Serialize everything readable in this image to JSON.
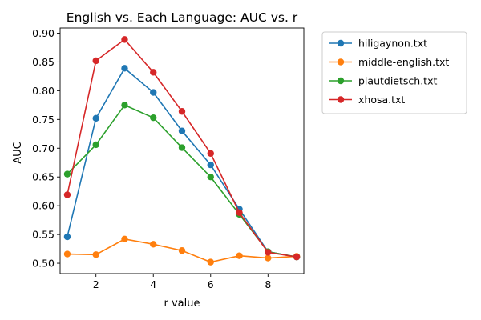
{
  "chart_data": {
    "type": "line",
    "title": "English vs. Each Language: AUC vs. r",
    "xlabel": "r value",
    "ylabel": "AUC",
    "x": [
      1,
      2,
      3,
      4,
      5,
      6,
      7,
      8,
      9
    ],
    "xlim": [
      0.75,
      9.25
    ],
    "ylim": [
      0.482,
      0.909
    ],
    "xticks": [
      2,
      4,
      6,
      8
    ],
    "yticks": [
      0.5,
      0.55,
      0.6,
      0.65,
      0.7,
      0.75,
      0.8,
      0.85,
      0.9
    ],
    "ytick_labels": [
      "0.50",
      "0.55",
      "0.60",
      "0.65",
      "0.70",
      "0.75",
      "0.80",
      "0.85",
      "0.90"
    ],
    "grid": false,
    "legend_position": "outside-upper-right",
    "series": [
      {
        "name": "hiligaynon.txt",
        "color": "#1f77b4",
        "values": [
          0.546,
          0.752,
          0.839,
          0.797,
          0.73,
          0.671,
          0.594,
          0.52,
          0.511
        ]
      },
      {
        "name": "middle-english.txt",
        "color": "#ff7f0e",
        "values": [
          0.516,
          0.515,
          0.542,
          0.533,
          0.522,
          0.502,
          0.513,
          0.509,
          0.512
        ]
      },
      {
        "name": "plautdietsch.txt",
        "color": "#2ca02c",
        "values": [
          0.655,
          0.706,
          0.775,
          0.753,
          0.701,
          0.65,
          0.585,
          0.52,
          0.511
        ]
      },
      {
        "name": "xhosa.txt",
        "color": "#d62728",
        "values": [
          0.619,
          0.852,
          0.889,
          0.832,
          0.764,
          0.691,
          0.588,
          0.519,
          0.511
        ]
      }
    ]
  }
}
